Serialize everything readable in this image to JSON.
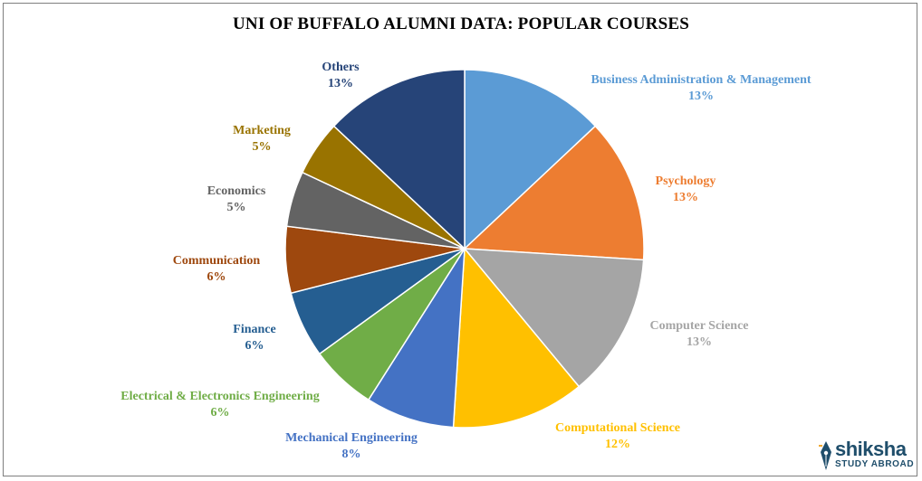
{
  "chart_data": {
    "type": "pie",
    "title": "UNI OF BUFFALO ALUMNI  DATA:  POPULAR COURSES",
    "slices": [
      {
        "label": "Business Administration  & Management",
        "value": 13,
        "display": "13%",
        "color": "#5b9bd5",
        "label_color": "#5b9bd5"
      },
      {
        "label": "Psychology",
        "value": 13,
        "display": "13%",
        "color": "#ed7d31",
        "label_color": "#ed7d31"
      },
      {
        "label": "Computer  Science",
        "value": 13,
        "display": "13%",
        "color": "#a5a5a5",
        "label_color": "#a5a5a5"
      },
      {
        "label": "Computational  Science",
        "value": 12,
        "display": "12%",
        "color": "#ffc000",
        "label_color": "#ffc000"
      },
      {
        "label": "Mechanical Engineering",
        "value": 8,
        "display": "8%",
        "color": "#4472c4",
        "label_color": "#4472c4"
      },
      {
        "label": "Electrical  & Electronics  Engineering",
        "value": 6,
        "display": "6%",
        "color": "#70ad47",
        "label_color": "#70ad47"
      },
      {
        "label": "Finance",
        "value": 6,
        "display": "6%",
        "color": "#255e91",
        "label_color": "#255e91"
      },
      {
        "label": "Communication",
        "value": 6,
        "display": "6%",
        "color": "#9e480e",
        "label_color": "#9e480e"
      },
      {
        "label": "Economics",
        "value": 5,
        "display": "5%",
        "color": "#636363",
        "label_color": "#636363"
      },
      {
        "label": "Marketing",
        "value": 5,
        "display": "5%",
        "color": "#997300",
        "label_color": "#997300"
      },
      {
        "label": "Others",
        "value": 13,
        "display": "13%",
        "color": "#264478",
        "label_color": "#264478"
      }
    ]
  },
  "logo": {
    "name": "shiksha",
    "tagline": "STUDY ABROAD"
  }
}
